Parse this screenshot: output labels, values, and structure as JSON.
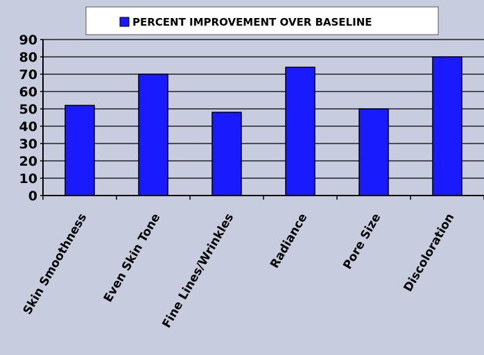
{
  "chart_data": {
    "type": "bar",
    "categories": [
      "Skin Smoothness",
      "Even Skin Tone",
      "Fine Lines/Wrinkles",
      "Radiance",
      "Pore Size",
      "Discoloration"
    ],
    "series": [
      {
        "name": "PERCENT IMPROVEMENT OVER BASELINE",
        "values": [
          52,
          70,
          48,
          74,
          50,
          80
        ]
      }
    ],
    "yticks": [
      "0",
      "10",
      "20",
      "30",
      "40",
      "50",
      "60",
      "70",
      "80",
      "90"
    ],
    "ylim": [
      0,
      90
    ],
    "grid": true,
    "legend_position": "top-center"
  },
  "colors": {
    "background": "#c8ccdf",
    "bar_fill": "#1a1aff",
    "bar_stroke": "#000000",
    "legend_bg": "#ffffff"
  }
}
